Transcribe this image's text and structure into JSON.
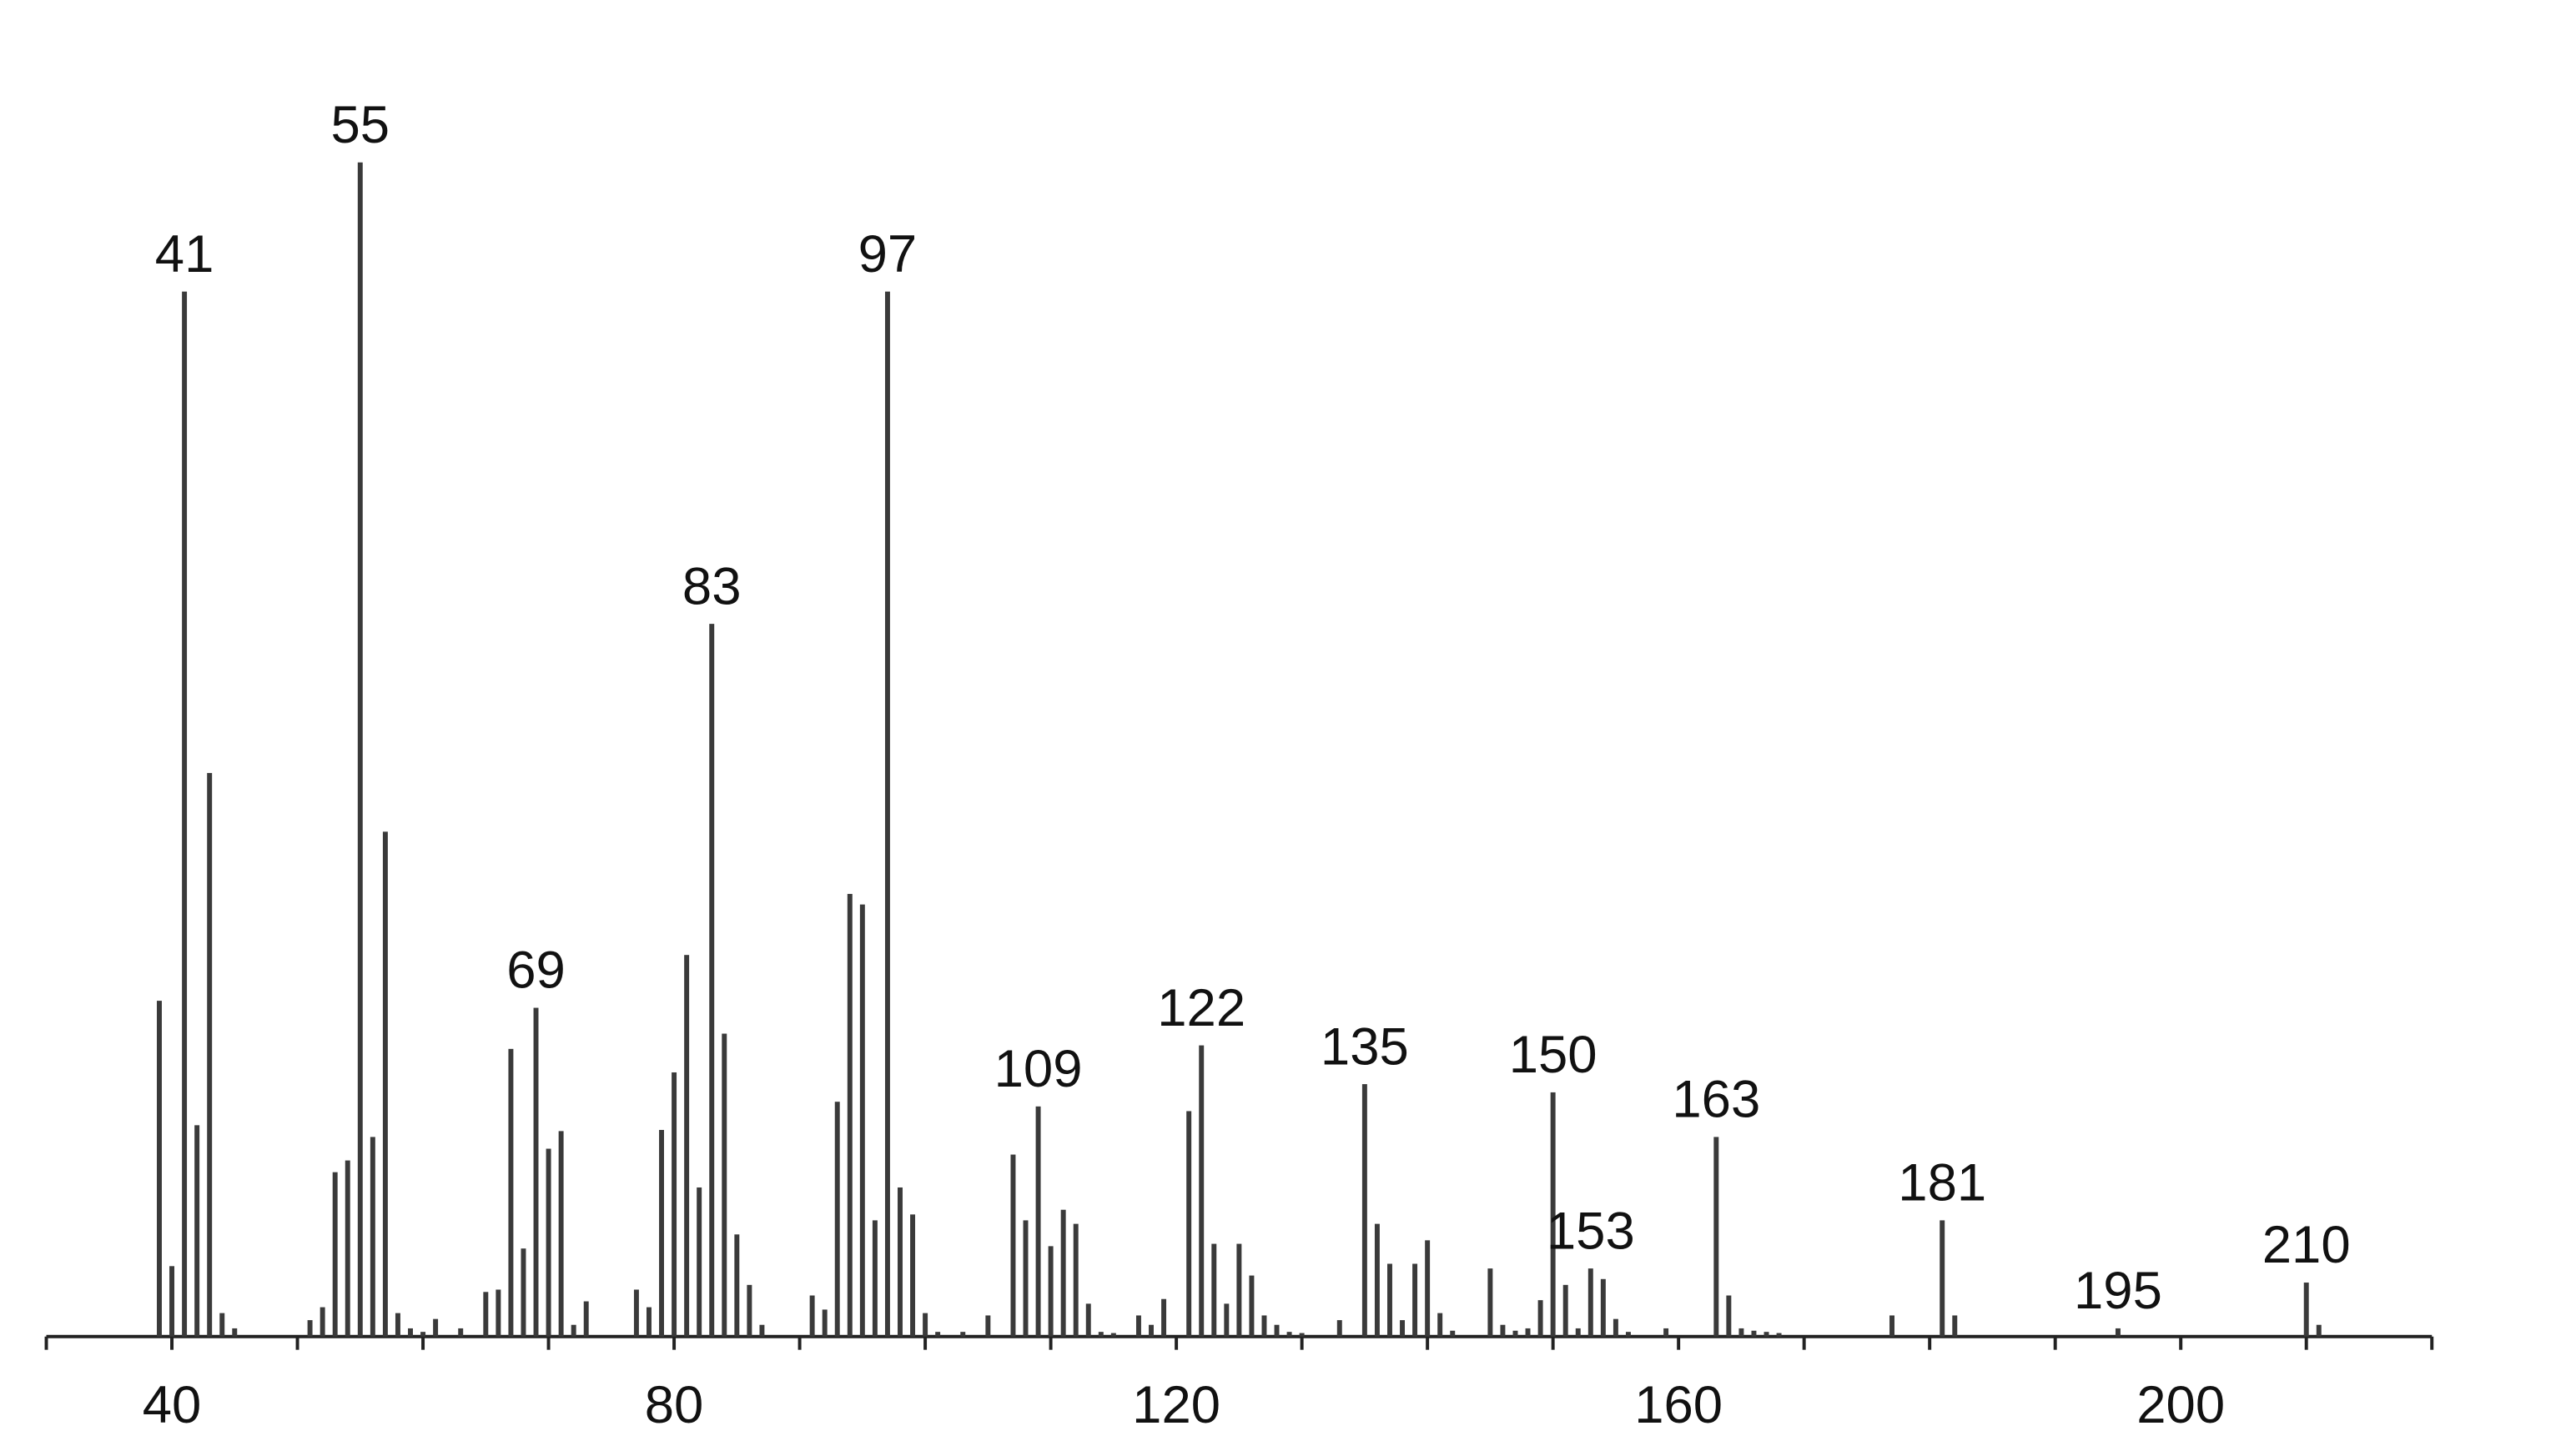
{
  "chart_data": {
    "type": "bar",
    "x": [
      39,
      40,
      41,
      42,
      43,
      44,
      45,
      51,
      52,
      53,
      54,
      55,
      56,
      57,
      58,
      59,
      60,
      61,
      63,
      65,
      66,
      67,
      68,
      69,
      70,
      71,
      72,
      73,
      77,
      78,
      79,
      80,
      81,
      82,
      83,
      84,
      85,
      86,
      87,
      91,
      92,
      93,
      94,
      95,
      96,
      97,
      98,
      99,
      100,
      101,
      103,
      105,
      107,
      108,
      109,
      110,
      111,
      112,
      113,
      114,
      115,
      117,
      118,
      119,
      121,
      122,
      123,
      124,
      125,
      126,
      127,
      128,
      129,
      130,
      133,
      135,
      136,
      137,
      138,
      139,
      140,
      141,
      142,
      145,
      146,
      147,
      148,
      149,
      150,
      151,
      152,
      153,
      154,
      155,
      156,
      159,
      163,
      164,
      165,
      166,
      167,
      168,
      177,
      181,
      182,
      195,
      210,
      211
    ],
    "values": [
      28.6,
      6,
      89,
      18,
      48,
      2,
      0.7,
      1.4,
      2.5,
      14,
      15,
      100,
      17,
      43,
      2,
      0.7,
      0.4,
      1.5,
      0.7,
      3.8,
      4,
      24.5,
      7.5,
      28,
      16,
      17.5,
      1,
      3,
      4,
      2.5,
      17.6,
      22.5,
      32.5,
      12.7,
      60.7,
      25.8,
      8.7,
      4.4,
      1,
      3.5,
      2.3,
      20,
      37.7,
      36.8,
      9.9,
      89,
      12.7,
      10.4,
      2,
      0.4,
      0.4,
      1.8,
      15.5,
      9.9,
      19.6,
      7.7,
      10.8,
      9.6,
      2.8,
      0.4,
      0.3,
      1.8,
      1,
      3.2,
      19.2,
      24.8,
      7.9,
      2.8,
      7.9,
      5.2,
      1.8,
      1,
      0.4,
      0.3,
      1.4,
      21.5,
      9.6,
      6.2,
      1.4,
      6.2,
      8.2,
      2,
      0.5,
      5.8,
      1,
      0.5,
      0.7,
      3.1,
      20.8,
      4.4,
      0.7,
      5.8,
      4.9,
      1.5,
      0.4,
      0.7,
      17,
      3.5,
      0.7,
      0.5,
      0.4,
      0.3,
      1.8,
      9.9,
      1.8,
      0.7,
      4.6,
      1
    ],
    "peak_labels": [
      41,
      55,
      69,
      83,
      97,
      109,
      122,
      135,
      150,
      153,
      163,
      181,
      195,
      210
    ],
    "color": "#3a3a3a",
    "xlim": [
      30,
      220
    ],
    "xticks": [
      40,
      80,
      120,
      160,
      200
    ],
    "xminor_ticks": [
      30,
      50,
      60,
      70,
      90,
      100,
      110,
      130,
      140,
      150,
      170,
      180,
      190,
      210,
      220
    ],
    "ylim": [
      0,
      100
    ]
  }
}
